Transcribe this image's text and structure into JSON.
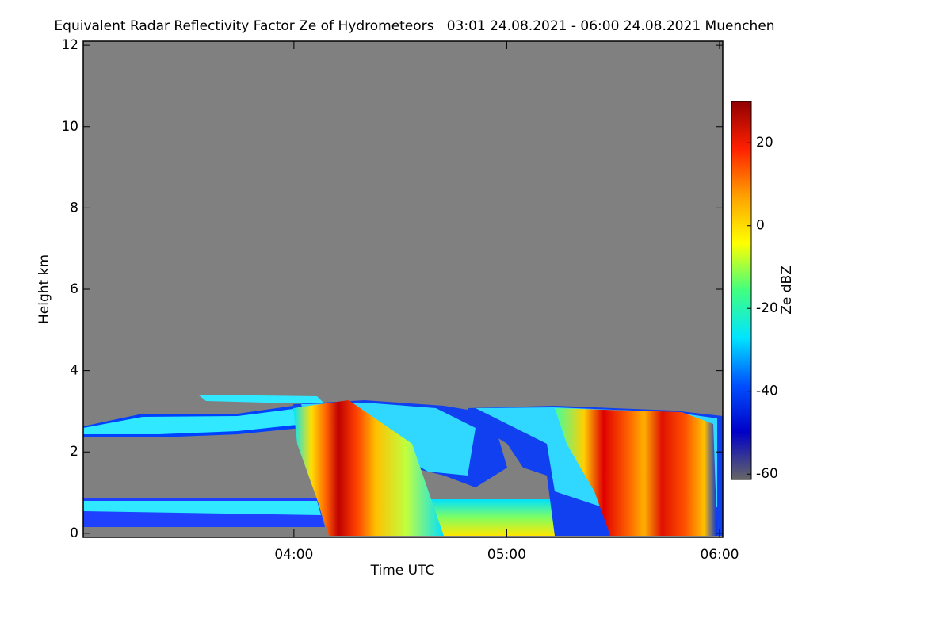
{
  "chart_data": {
    "type": "heatmap",
    "title": "Equivalent Radar Reflectivity Factor Ze of Hydrometeors   03:01 24.08.2021 - 06:00 24.08.2021 Muenchen",
    "xlabel": "Time UTC",
    "ylabel": "Height km",
    "xlim": [
      3.01,
      6.015
    ],
    "xticks": [
      {
        "value": 4,
        "label": "04:00"
      },
      {
        "value": 5,
        "label": "05:00"
      },
      {
        "value": 6,
        "label": "06:00"
      }
    ],
    "ylim": [
      -0.1,
      12.1
    ],
    "yticks": [
      0,
      2,
      4,
      6,
      8,
      10,
      12
    ],
    "colorbar": {
      "label": "Ze dBZ",
      "lim": [
        -61.3,
        30
      ],
      "ticks": [
        -60,
        -40,
        -20,
        0,
        20
      ],
      "colormap": [
        "#666666",
        "#0000c8",
        "#0050ff",
        "#00e5ff",
        "#40ff80",
        "#ffff00",
        "#ffa000",
        "#ff2000",
        "#900000"
      ]
    },
    "missing_color": "#808080"
  }
}
